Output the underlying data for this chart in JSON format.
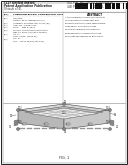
{
  "bg_color": "#ffffff",
  "border_color": "#000000",
  "barcode_color": "#111111",
  "header_left1": "(12) United States",
  "header_left2": "Patent Application Publication",
  "header_left3": "Ohtsuki et al.",
  "header_right1": "(10) Pub. No.: US 2013/0340406 A1",
  "header_right2": "(43) Pub. Date:       Dec. 27, 2013",
  "meta_items": [
    [
      "(54)",
      "THERMOELECTRIC CONVERSION UNIT"
    ],
    [
      "(75)",
      "Inventors: Ohtsuki et al."
    ],
    [
      "(73)",
      "Assignee: ..."
    ],
    [
      "(21)",
      "Appl. No.: ..."
    ],
    [
      "(22)",
      "Filed:     May 9, 2013"
    ],
    [
      "(30)",
      "Foreign Application Priority Data"
    ],
    [
      "(51)",
      "Int. Cl."
    ],
    [
      "(52)",
      "U.S. Cl."
    ]
  ],
  "abstract_title": "ABSTRACT",
  "abstract_text": "A thermoelectric conversion unit that can efficiently transfer heat and generate electricity from temperature differences. The unit includes multiple thermoelectric modules arranged within a frame structure with heat exchangers on both sides.",
  "fig_bg": "#f5f5f5",
  "fig_edge": "#333333",
  "fig_detail": "#666666",
  "fig_light": "#e0e0e0",
  "fig_dark": "#999999"
}
